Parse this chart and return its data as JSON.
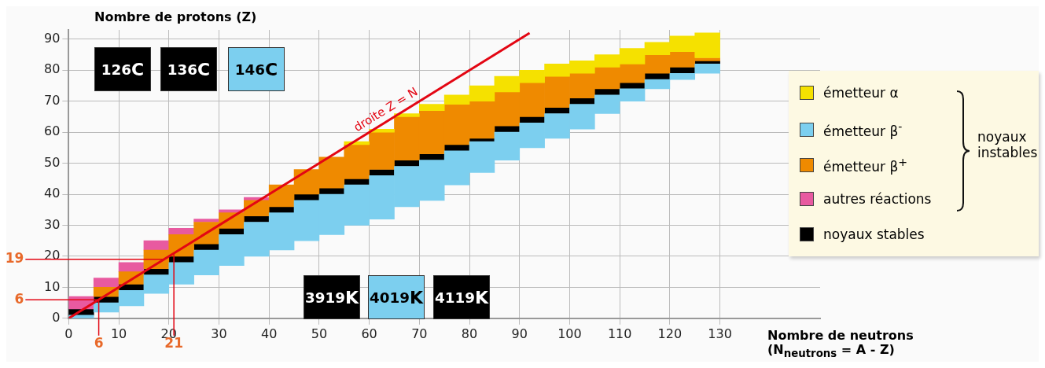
{
  "chart_data": {
    "type": "bar",
    "xlabel": "Nombre de neutrons (N$_{neutrons}$ = A - Z)",
    "ylabel": "Nombre de protons (Z)",
    "legend_title": "noyaux instables",
    "x": [
      2.5,
      7.5,
      12.5,
      17.5,
      22.5,
      27.5,
      32.5,
      37.5,
      42.5,
      47.5,
      52.5,
      57.5,
      62.5,
      67.5,
      72.5,
      77.5,
      82.5,
      87.5,
      92.5,
      97.5,
      102.5,
      107.5,
      112.5,
      117.5,
      122.5,
      127.5
    ],
    "series": [
      {
        "name": "émetteur α",
        "color": "#f5e100",
        "base": [
          null,
          null,
          null,
          null,
          null,
          null,
          null,
          null,
          null,
          null,
          null,
          56,
          60,
          65,
          67,
          69,
          70,
          73,
          76,
          78,
          79,
          81,
          82,
          85,
          86,
          84
        ],
        "values": [
          null,
          null,
          null,
          null,
          null,
          null,
          null,
          null,
          null,
          null,
          null,
          1,
          1,
          1,
          2,
          3,
          5,
          5,
          4,
          4,
          4,
          4,
          5,
          4,
          5,
          8
        ]
      },
      {
        "name": "émetteur β$^{-}$",
        "color": "#7ccfef",
        "base": [
          0,
          2,
          4,
          8,
          11,
          14,
          17,
          20,
          22,
          25,
          27,
          30,
          32,
          36,
          38,
          43,
          47,
          51,
          55,
          58,
          61,
          66,
          70,
          74,
          77,
          79
        ],
        "values": [
          1,
          3,
          5,
          6,
          7,
          8,
          10,
          11,
          12,
          13,
          13,
          13,
          14,
          13,
          13,
          11,
          10,
          9,
          8,
          8,
          8,
          6,
          4,
          3,
          2,
          3
        ]
      },
      {
        "name": "émetteur β$^{+}$",
        "color": "#ef8a00",
        "base": [
          null,
          7,
          11,
          16,
          20,
          24,
          29,
          33,
          36,
          40,
          42,
          45,
          48,
          51,
          53,
          56,
          58,
          62,
          65,
          68,
          71,
          74,
          76,
          79,
          81,
          83
        ],
        "values": [
          null,
          3,
          4,
          6,
          7,
          7,
          5,
          5,
          7,
          8,
          10,
          11,
          12,
          14,
          14,
          13,
          12,
          11,
          11,
          10,
          8,
          7,
          6,
          6,
          5,
          1
        ]
      },
      {
        "name": "autres réactions",
        "color": "#e85aa0",
        "base": [
          3,
          10,
          15,
          22,
          27,
          31,
          34,
          38,
          null,
          null,
          null,
          null,
          null,
          null,
          null,
          null,
          null,
          null,
          null,
          null,
          null,
          null,
          null,
          null,
          null,
          null
        ],
        "values": [
          4,
          3,
          3,
          3,
          2,
          1,
          1,
          1,
          null,
          null,
          null,
          null,
          null,
          null,
          null,
          null,
          null,
          null,
          null,
          null,
          null,
          null,
          null,
          null,
          null,
          null
        ]
      },
      {
        "name": "noyaux stables",
        "color": "#000000",
        "base": [
          1,
          5,
          9,
          14,
          18,
          22,
          27,
          31,
          34,
          38,
          40,
          43,
          46,
          49,
          51,
          54,
          57,
          60,
          63,
          66,
          69,
          72,
          74,
          77,
          79,
          82
        ],
        "values": [
          2,
          2,
          2,
          2,
          2,
          2,
          2,
          2,
          2,
          2,
          2,
          2,
          2,
          2,
          2,
          2,
          1,
          2,
          2,
          2,
          2,
          2,
          2,
          2,
          2,
          1
        ]
      },
      {
        "name": "droite Z = N",
        "type": "line",
        "color": "#e30613",
        "x": [
          0,
          92
        ],
        "values": [
          0,
          92
        ]
      }
    ],
    "xlim": [
      0,
      150
    ],
    "ylim": [
      0,
      93
    ],
    "xticks": [
      0,
      10,
      20,
      30,
      40,
      50,
      60,
      70,
      80,
      90,
      100,
      110,
      120,
      130
    ],
    "yticks": [
      0,
      10,
      20,
      30,
      40,
      50,
      60,
      70,
      80,
      90
    ],
    "grid": true,
    "legend": "right",
    "ref_lines": [
      {
        "axis": "y",
        "value": 19,
        "label": "19"
      },
      {
        "axis": "y",
        "value": 6,
        "label": "6"
      },
      {
        "axis": "x",
        "value": 6,
        "label": "6"
      },
      {
        "axis": "x",
        "value": 21,
        "label": "21"
      }
    ],
    "annotations": [
      "$^{12}$$_{6}$C",
      "$^{13}$$_{6}$C",
      "$^{14}$$_{6}$C",
      "$^{39}$$_{19}$K",
      "$^{40}$$_{19}$K",
      "$^{41}$$_{19}$K"
    ]
  }
}
